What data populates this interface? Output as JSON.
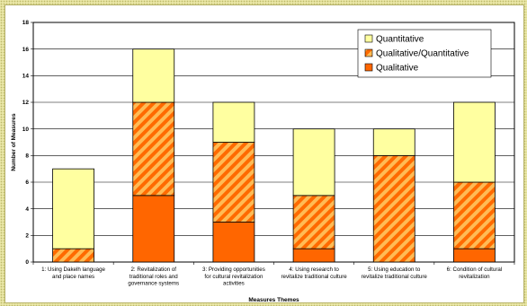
{
  "chart_data": {
    "type": "bar",
    "stacked": true,
    "categories": [
      [
        "1: Using Dakelh language",
        "and place names"
      ],
      [
        "2: Revitalization of",
        "traditional roles and",
        "governance systems"
      ],
      [
        "3: Providing opportunities",
        "for cultural revitalization",
        "activities"
      ],
      [
        "4: Using research to",
        "revitalize traditional culture"
      ],
      [
        "5: Using education to",
        "revitalize traditional culture"
      ],
      [
        "6: Condition of cultural",
        "revitalization"
      ]
    ],
    "series": [
      {
        "name": "Qualitative",
        "values": [
          0,
          5,
          3,
          1,
          0,
          1
        ],
        "color": "#ff6600",
        "pattern": "solid"
      },
      {
        "name": "Qualitative/Quantitative",
        "values": [
          1,
          7,
          6,
          4,
          8,
          5
        ],
        "color": "#ffbb55",
        "pattern": "diagonal-stripes"
      },
      {
        "name": "Quantitative",
        "values": [
          6,
          4,
          3,
          5,
          2,
          6
        ],
        "color": "#ffffa0",
        "pattern": "solid"
      }
    ],
    "xlabel": "Measures Themes",
    "ylabel": "Number of Measures",
    "ylim": [
      0,
      18
    ],
    "yticks": [
      "0",
      "2",
      "4",
      "6",
      "8",
      "10",
      "12",
      "14",
      "16",
      "18"
    ],
    "grid": true,
    "legend_position": "top-right",
    "legend_order": [
      "Quantitative",
      "Qualitative/Quantitative",
      "Qualitative"
    ]
  }
}
